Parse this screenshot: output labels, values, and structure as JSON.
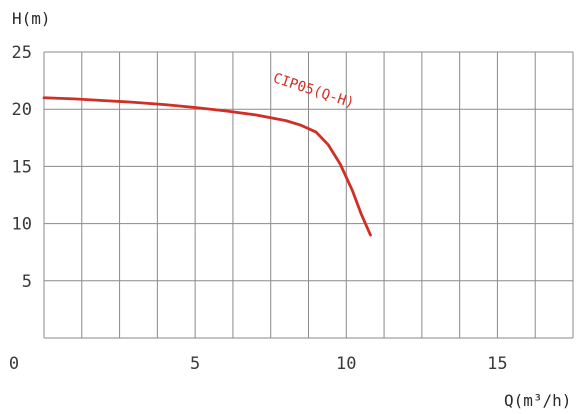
{
  "chart_data": {
    "type": "line",
    "title": "",
    "xlabel": "Q(m³/h)",
    "ylabel": "H(m)",
    "xlim": [
      0,
      17.5
    ],
    "ylim": [
      0,
      25
    ],
    "x_ticks": [
      "0",
      "5",
      "10",
      "15"
    ],
    "y_ticks": [
      "5",
      "10",
      "15",
      "20",
      "25"
    ],
    "x_grid_step": 1.25,
    "y_grid_step": 5,
    "grid": true,
    "series": [
      {
        "name": "CIP05(Q-H)",
        "color": "#d12e24",
        "x": [
          0,
          1,
          2,
          3,
          4,
          5,
          6,
          7,
          8,
          8.5,
          9,
          9.4,
          9.8,
          10.2,
          10.5,
          10.8
        ],
        "y": [
          21.0,
          20.9,
          20.75,
          20.6,
          20.4,
          20.15,
          19.85,
          19.5,
          19.0,
          18.6,
          18.0,
          16.9,
          15.2,
          12.9,
          10.8,
          9.0
        ]
      }
    ]
  }
}
